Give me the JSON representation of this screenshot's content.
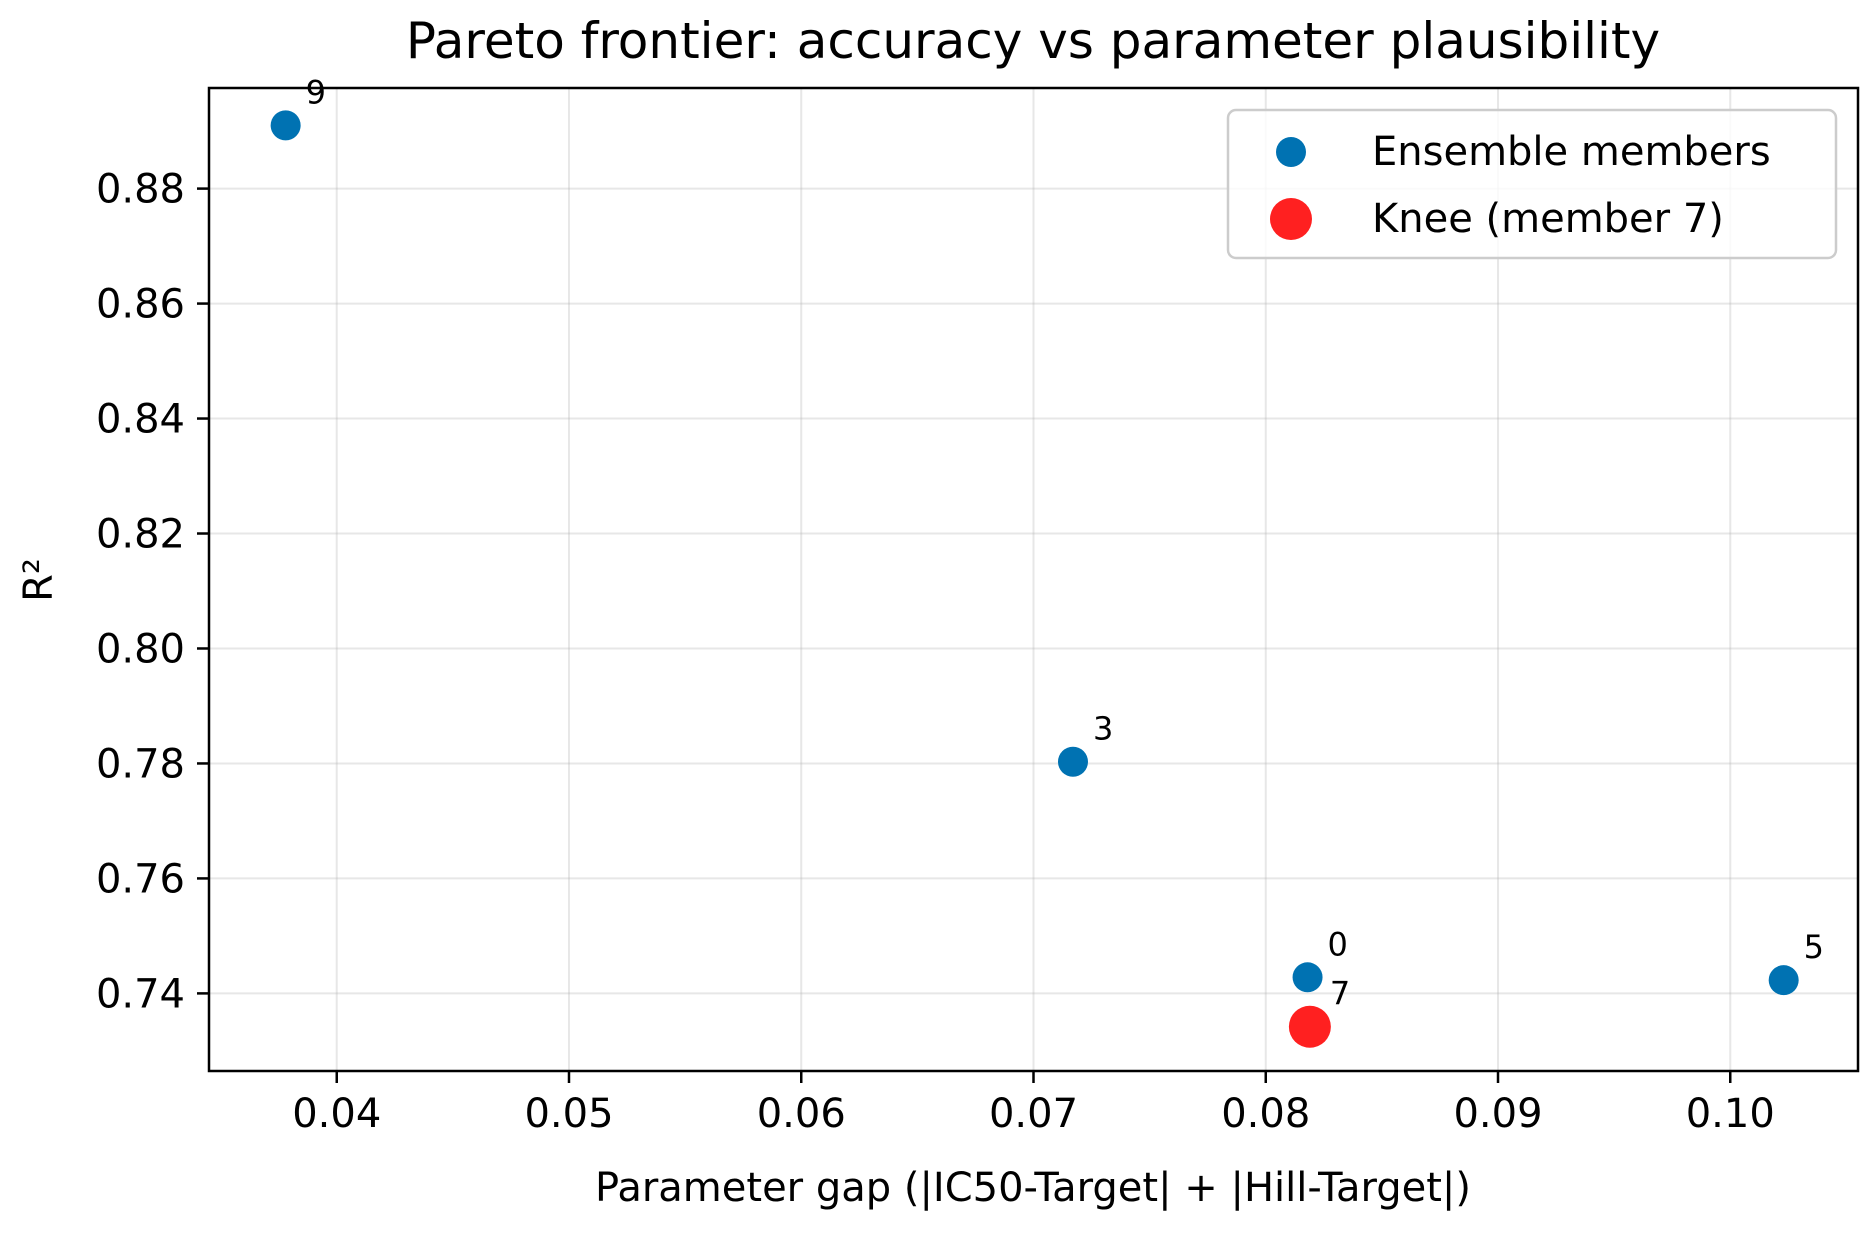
{
  "chart_data": {
    "type": "scatter",
    "title": "Pareto frontier: accuracy vs parameter plausibility",
    "xlabel": "Parameter gap (|IC50-Target| + |Hill-Target|)",
    "ylabel": "R²",
    "xlim": [
      0.0345,
      0.1055
    ],
    "ylim": [
      0.7265,
      0.8975
    ],
    "xticks": [
      0.04,
      0.05,
      0.06,
      0.07,
      0.08,
      0.09,
      0.1
    ],
    "xtick_labels": [
      "0.04",
      "0.05",
      "0.06",
      "0.07",
      "0.08",
      "0.09",
      "0.10"
    ],
    "yticks": [
      0.74,
      0.76,
      0.78,
      0.8,
      0.82,
      0.84,
      0.86,
      0.88
    ],
    "ytick_labels": [
      "0.74",
      "0.76",
      "0.78",
      "0.80",
      "0.82",
      "0.84",
      "0.86",
      "0.88"
    ],
    "grid": true,
    "legend": {
      "placement": "top-right",
      "entries": [
        {
          "label": "Ensemble members",
          "color": "#0072b2"
        },
        {
          "label": "Knee (member 7)",
          "color": "#ff2020"
        }
      ]
    },
    "series": [
      {
        "name": "Ensemble members",
        "color": "#0072b2",
        "points": [
          {
            "x": 0.0378,
            "y": 0.891,
            "label": "9"
          },
          {
            "x": 0.0717,
            "y": 0.7803,
            "label": "3"
          },
          {
            "x": 0.0818,
            "y": 0.7428,
            "label": "0"
          },
          {
            "x": 0.1023,
            "y": 0.7423,
            "label": "5"
          }
        ]
      },
      {
        "name": "Knee (member 7)",
        "color": "#ff2020",
        "points": [
          {
            "x": 0.0819,
            "y": 0.7342,
            "label": "7"
          }
        ]
      }
    ]
  }
}
